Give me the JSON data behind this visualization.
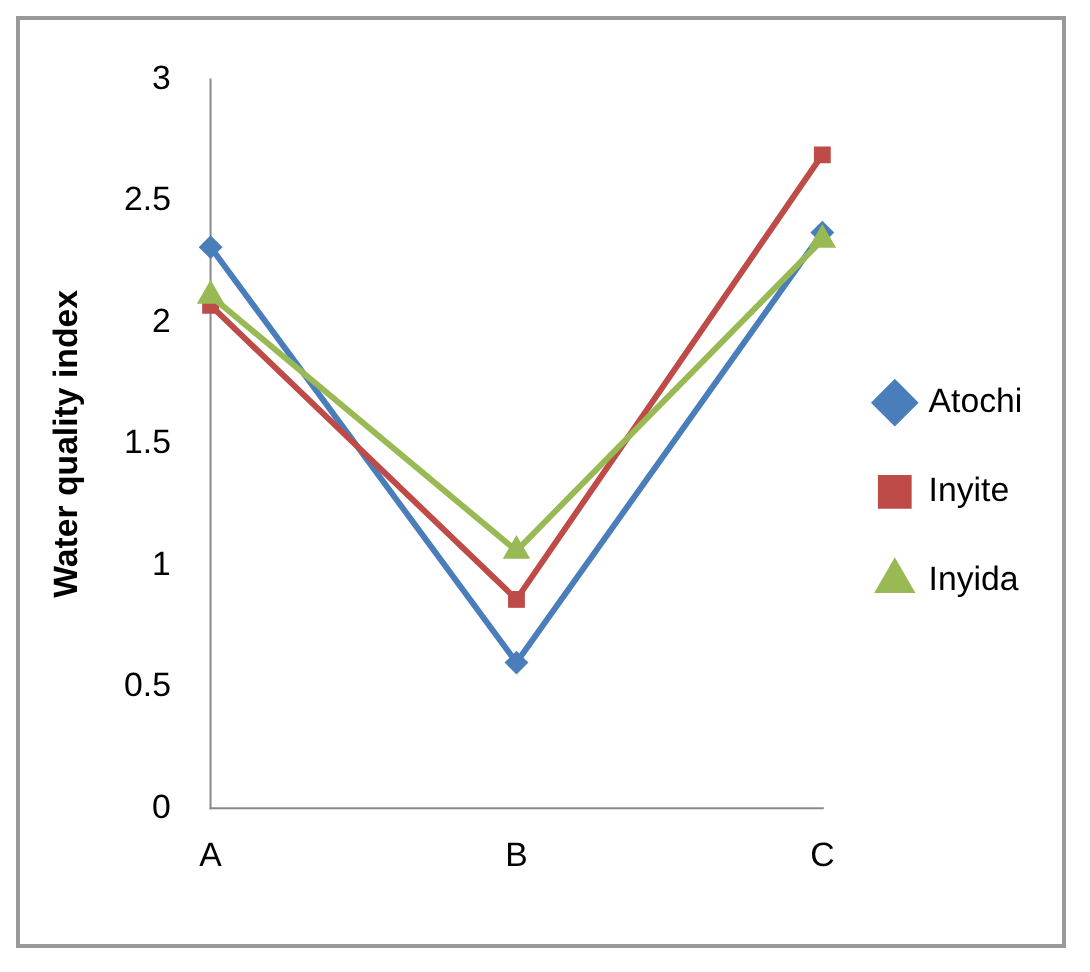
{
  "chart_data": {
    "type": "line",
    "ylabel": "Water quality index",
    "categories": [
      "A",
      "B",
      "C"
    ],
    "series": [
      {
        "name": "Atochi",
        "color": "#4a7ebb",
        "values": [
          2.31,
          0.6,
          2.37
        ],
        "marker": "diamond"
      },
      {
        "name": "Inyite",
        "color": "#be4b48",
        "values": [
          2.07,
          0.86,
          2.69
        ],
        "marker": "square"
      },
      {
        "name": "Inyida",
        "color": "#98b954",
        "values": [
          2.11,
          1.06,
          2.34
        ],
        "marker": "triangle"
      }
    ],
    "ylim": [
      0,
      3
    ],
    "yticks": [
      0,
      0.5,
      1,
      1.5,
      2,
      2.5,
      3
    ],
    "grid": false,
    "legend": "right",
    "line_style": "solid"
  }
}
